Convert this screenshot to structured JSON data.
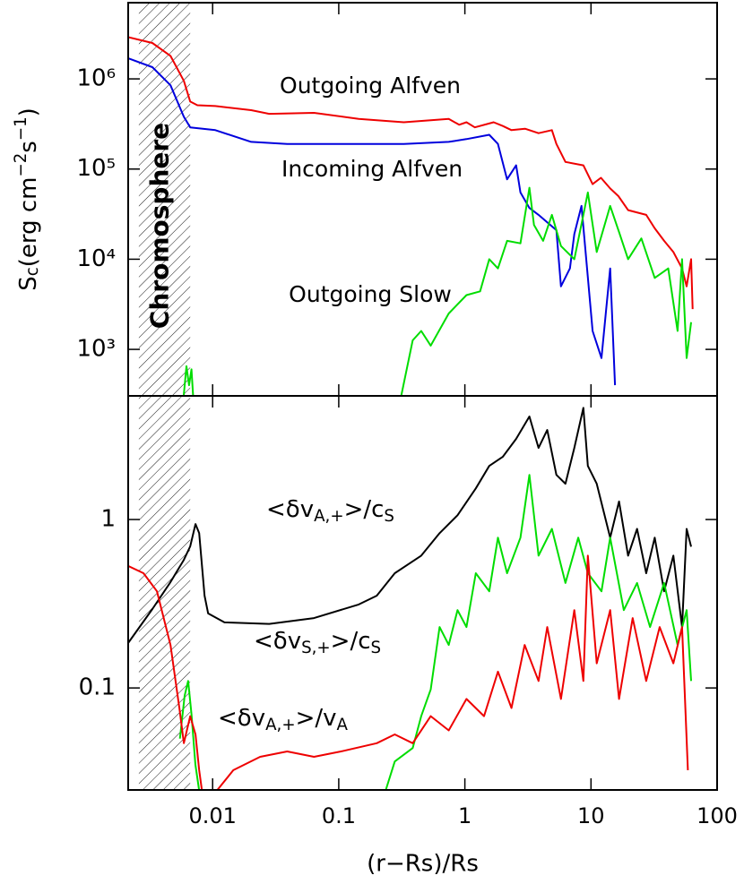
{
  "chart_data": [
    {
      "type": "line",
      "xlog": true,
      "ylog": true,
      "xlim": [
        0.00214,
        100
      ],
      "ylim": [
        305,
        7000000
      ],
      "yticks": [
        {
          "value": 1000,
          "label": "10³"
        },
        {
          "value": 10000,
          "label": "10⁴"
        },
        {
          "value": 100000,
          "label": "10⁵"
        },
        {
          "value": 1000000,
          "label": "10⁶"
        }
      ],
      "ylabel": [
        {
          "text": "S"
        },
        {
          "text": "c",
          "pos": "sub"
        },
        {
          "text": "(erg cm"
        },
        {
          "text": "−2",
          "pos": "super"
        },
        {
          "text": "s"
        },
        {
          "text": "−1",
          "pos": "super"
        },
        {
          "text": ")"
        }
      ],
      "shade_x": [
        0.0026,
        0.00664
      ],
      "shade_label": "Chromosphere",
      "shade_label_color": "#dd00dd",
      "series": [
        {
          "name": "Outgoing Alfven",
          "color": "#ee0000",
          "x": [
            0.00214,
            0.00333,
            0.00463,
            0.00591,
            0.00664,
            0.00757,
            0.0105,
            0.0202,
            0.0281,
            0.0637,
            0.144,
            0.328,
            0.745,
            0.9,
            1.03,
            1.2,
            1.69,
            2.0,
            2.34,
            3.0,
            3.84,
            4.9,
            5.32,
            6.27,
            8.7,
            10.3,
            12.0,
            14.2,
            16.5,
            19.7,
            27.4,
            32.0,
            38.0,
            45.0,
            52.7,
            57.3,
            62.2,
            64.0
          ],
          "values": [
            2900000,
            2500000,
            1800000,
            950000,
            560000,
            510000,
            500000,
            450000,
            410000,
            420000,
            360000,
            330000,
            360000,
            310000,
            330000,
            290000,
            330000,
            300000,
            270000,
            280000,
            250000,
            270000,
            190000,
            120000,
            110000,
            68000,
            80000,
            61000,
            50000,
            35000,
            31000,
            22000,
            16000,
            12000,
            7900,
            5000,
            10000,
            2800
          ]
        },
        {
          "name": "Incoming Alfven",
          "color": "#0000dd",
          "x": [
            0.00214,
            0.00333,
            0.00463,
            0.00591,
            0.00664,
            0.0105,
            0.0202,
            0.039,
            0.144,
            0.328,
            0.745,
            1.03,
            1.56,
            1.83,
            2.16,
            2.55,
            2.76,
            3.25,
            3.84,
            5.32,
            5.78,
            6.81,
            7.38,
            8.41,
            9.44,
            10.3,
            12.1,
            13.1,
            14.2,
            15.5
          ],
          "values": [
            1690000,
            1350000,
            850000,
            380000,
            290000,
            270000,
            200000,
            190000,
            190000,
            190000,
            200000,
            215000,
            240000,
            190000,
            77000,
            110000,
            55000,
            37000,
            31000,
            21000,
            5000,
            7900,
            19000,
            39000,
            6300,
            1600,
            800,
            2500,
            7900,
            400
          ]
        },
        {
          "name": "Outgoing Slow",
          "color": "#00dd00",
          "x": [
            0.0059,
            0.0062,
            0.0065,
            0.0068,
            0.007,
            null,
            0.313,
            0.386,
            0.451,
            0.536,
            0.745,
            1.03,
            1.32,
            1.56,
            1.83,
            2.16,
            2.76,
            3.25,
            3.53,
            4.17,
            4.9,
            5.78,
            7.38,
            8.7,
            9.44,
            11.1,
            14.2,
            16.7,
            19.7,
            25.1,
            32.0,
            41.0,
            48.6,
            52.7,
            57.3,
            62.2
          ],
          "values": [
            310,
            650,
            400,
            600,
            310,
            null,
            305,
            1260,
            1600,
            1100,
            2500,
            4000,
            4400,
            10000,
            7900,
            16000,
            15000,
            62000,
            24000,
            16000,
            31000,
            14000,
            10000,
            31000,
            55000,
            12000,
            39000,
            20000,
            10000,
            17000,
            6200,
            7900,
            1600,
            10000,
            800,
            2000
          ]
        }
      ]
    },
    {
      "type": "line",
      "xlog": true,
      "ylog": true,
      "xlim": [
        0.00214,
        100
      ],
      "ylim": [
        0.0248,
        5.42
      ],
      "xticks": [
        0.01,
        0.1,
        1,
        10,
        100
      ],
      "yticks": [
        0.1,
        1
      ],
      "xlabel": "(r−Rs)/Rs",
      "shade_x": [
        0.0026,
        0.00664
      ],
      "series": [
        {
          "color": "#000000",
          "label": [
            {
              "text": "<δv"
            },
            {
              "text": "A,+",
              "pos": "sub"
            },
            {
              "text": ">/c"
            },
            {
              "text": "S",
              "pos": "sub"
            }
          ],
          "x": [
            0.00214,
            0.00333,
            0.00463,
            0.00591,
            0.00664,
            0.00732,
            0.00782,
            0.00863,
            0.00921,
            0.0124,
            0.0281,
            0.0637,
            0.144,
            0.2,
            0.278,
            0.451,
            0.63,
            0.875,
            1.22,
            1.56,
            2.0,
            2.55,
            3.25,
            3.84,
            4.5,
            5.32,
            6.27,
            7.38,
            8.7,
            9.44,
            11.1,
            14.2,
            16.7,
            19.7,
            23.2,
            27.4,
            32.0,
            38.0,
            45.0,
            52.7,
            57.3,
            62.2
          ],
          "values": [
            0.185,
            0.294,
            0.425,
            0.576,
            0.693,
            0.94,
            0.83,
            0.353,
            0.277,
            0.245,
            0.24,
            0.26,
            0.313,
            0.353,
            0.48,
            0.61,
            0.83,
            1.06,
            1.53,
            2.08,
            2.36,
            3.01,
            4.09,
            2.66,
            3.4,
            1.84,
            1.63,
            2.66,
            4.6,
            2.08,
            1.63,
            0.78,
            1.28,
            0.61,
            0.88,
            0.48,
            0.78,
            0.375,
            0.61,
            0.23,
            0.88,
            0.69
          ]
        },
        {
          "color": "#00dd00",
          "label": [
            {
              "text": "<δv"
            },
            {
              "text": "S,+",
              "pos": "sub"
            },
            {
              "text": ">/c"
            },
            {
              "text": "S",
              "pos": "sub"
            }
          ],
          "x": [
            0.0055,
            0.006,
            0.0064,
            0.0068,
            0.0073,
            0.0078,
            null,
            0.236,
            0.278,
            0.386,
            0.451,
            0.536,
            0.63,
            0.745,
            0.875,
            1.03,
            1.22,
            1.56,
            1.83,
            2.16,
            2.76,
            3.25,
            3.84,
            4.9,
            6.27,
            7.93,
            9.44,
            12.1,
            14.2,
            18.2,
            23.2,
            29.4,
            38.0,
            48.6,
            57.3,
            62.2
          ],
          "values": [
            0.05,
            0.09,
            0.11,
            0.07,
            0.035,
            0.025,
            null,
            0.0248,
            0.0366,
            0.044,
            0.068,
            0.098,
            0.23,
            0.18,
            0.29,
            0.23,
            0.48,
            0.375,
            0.78,
            0.48,
            0.78,
            1.84,
            0.61,
            0.88,
            0.42,
            0.78,
            0.48,
            0.375,
            0.78,
            0.29,
            0.42,
            0.23,
            0.42,
            0.18,
            0.29,
            0.11
          ]
        },
        {
          "color": "#ee0000",
          "label": [
            {
              "text": "<δv"
            },
            {
              "text": "A,+",
              "pos": "sub"
            },
            {
              "text": ">/v"
            },
            {
              "text": "A",
              "pos": "sub"
            }
          ],
          "x": [
            0.00214,
            0.00283,
            0.00362,
            0.00463,
            0.00545,
            0.00591,
            0.00664,
            0.00732,
            0.00782,
            0.00822,
            null,
            0.0109,
            0.0146,
            0.0238,
            0.039,
            0.0637,
            0.104,
            0.2,
            0.278,
            0.386,
            0.536,
            0.745,
            1.03,
            1.42,
            1.83,
            2.34,
            2.98,
            3.84,
            4.5,
            5.78,
            7.38,
            8.7,
            9.44,
            11.1,
            14.2,
            16.7,
            21.4,
            27.4,
            35.0,
            45.0,
            52.7,
            58.7
          ],
          "values": [
            0.53,
            0.48,
            0.375,
            0.18,
            0.076,
            0.047,
            0.068,
            0.053,
            0.0325,
            0.0248,
            null,
            0.0248,
            0.0325,
            0.039,
            0.042,
            0.039,
            0.042,
            0.047,
            0.053,
            0.047,
            0.068,
            0.056,
            0.086,
            0.068,
            0.125,
            0.076,
            0.18,
            0.11,
            0.23,
            0.086,
            0.29,
            0.11,
            0.61,
            0.14,
            0.29,
            0.086,
            0.26,
            0.11,
            0.23,
            0.14,
            0.23,
            0.0325
          ]
        }
      ]
    }
  ]
}
